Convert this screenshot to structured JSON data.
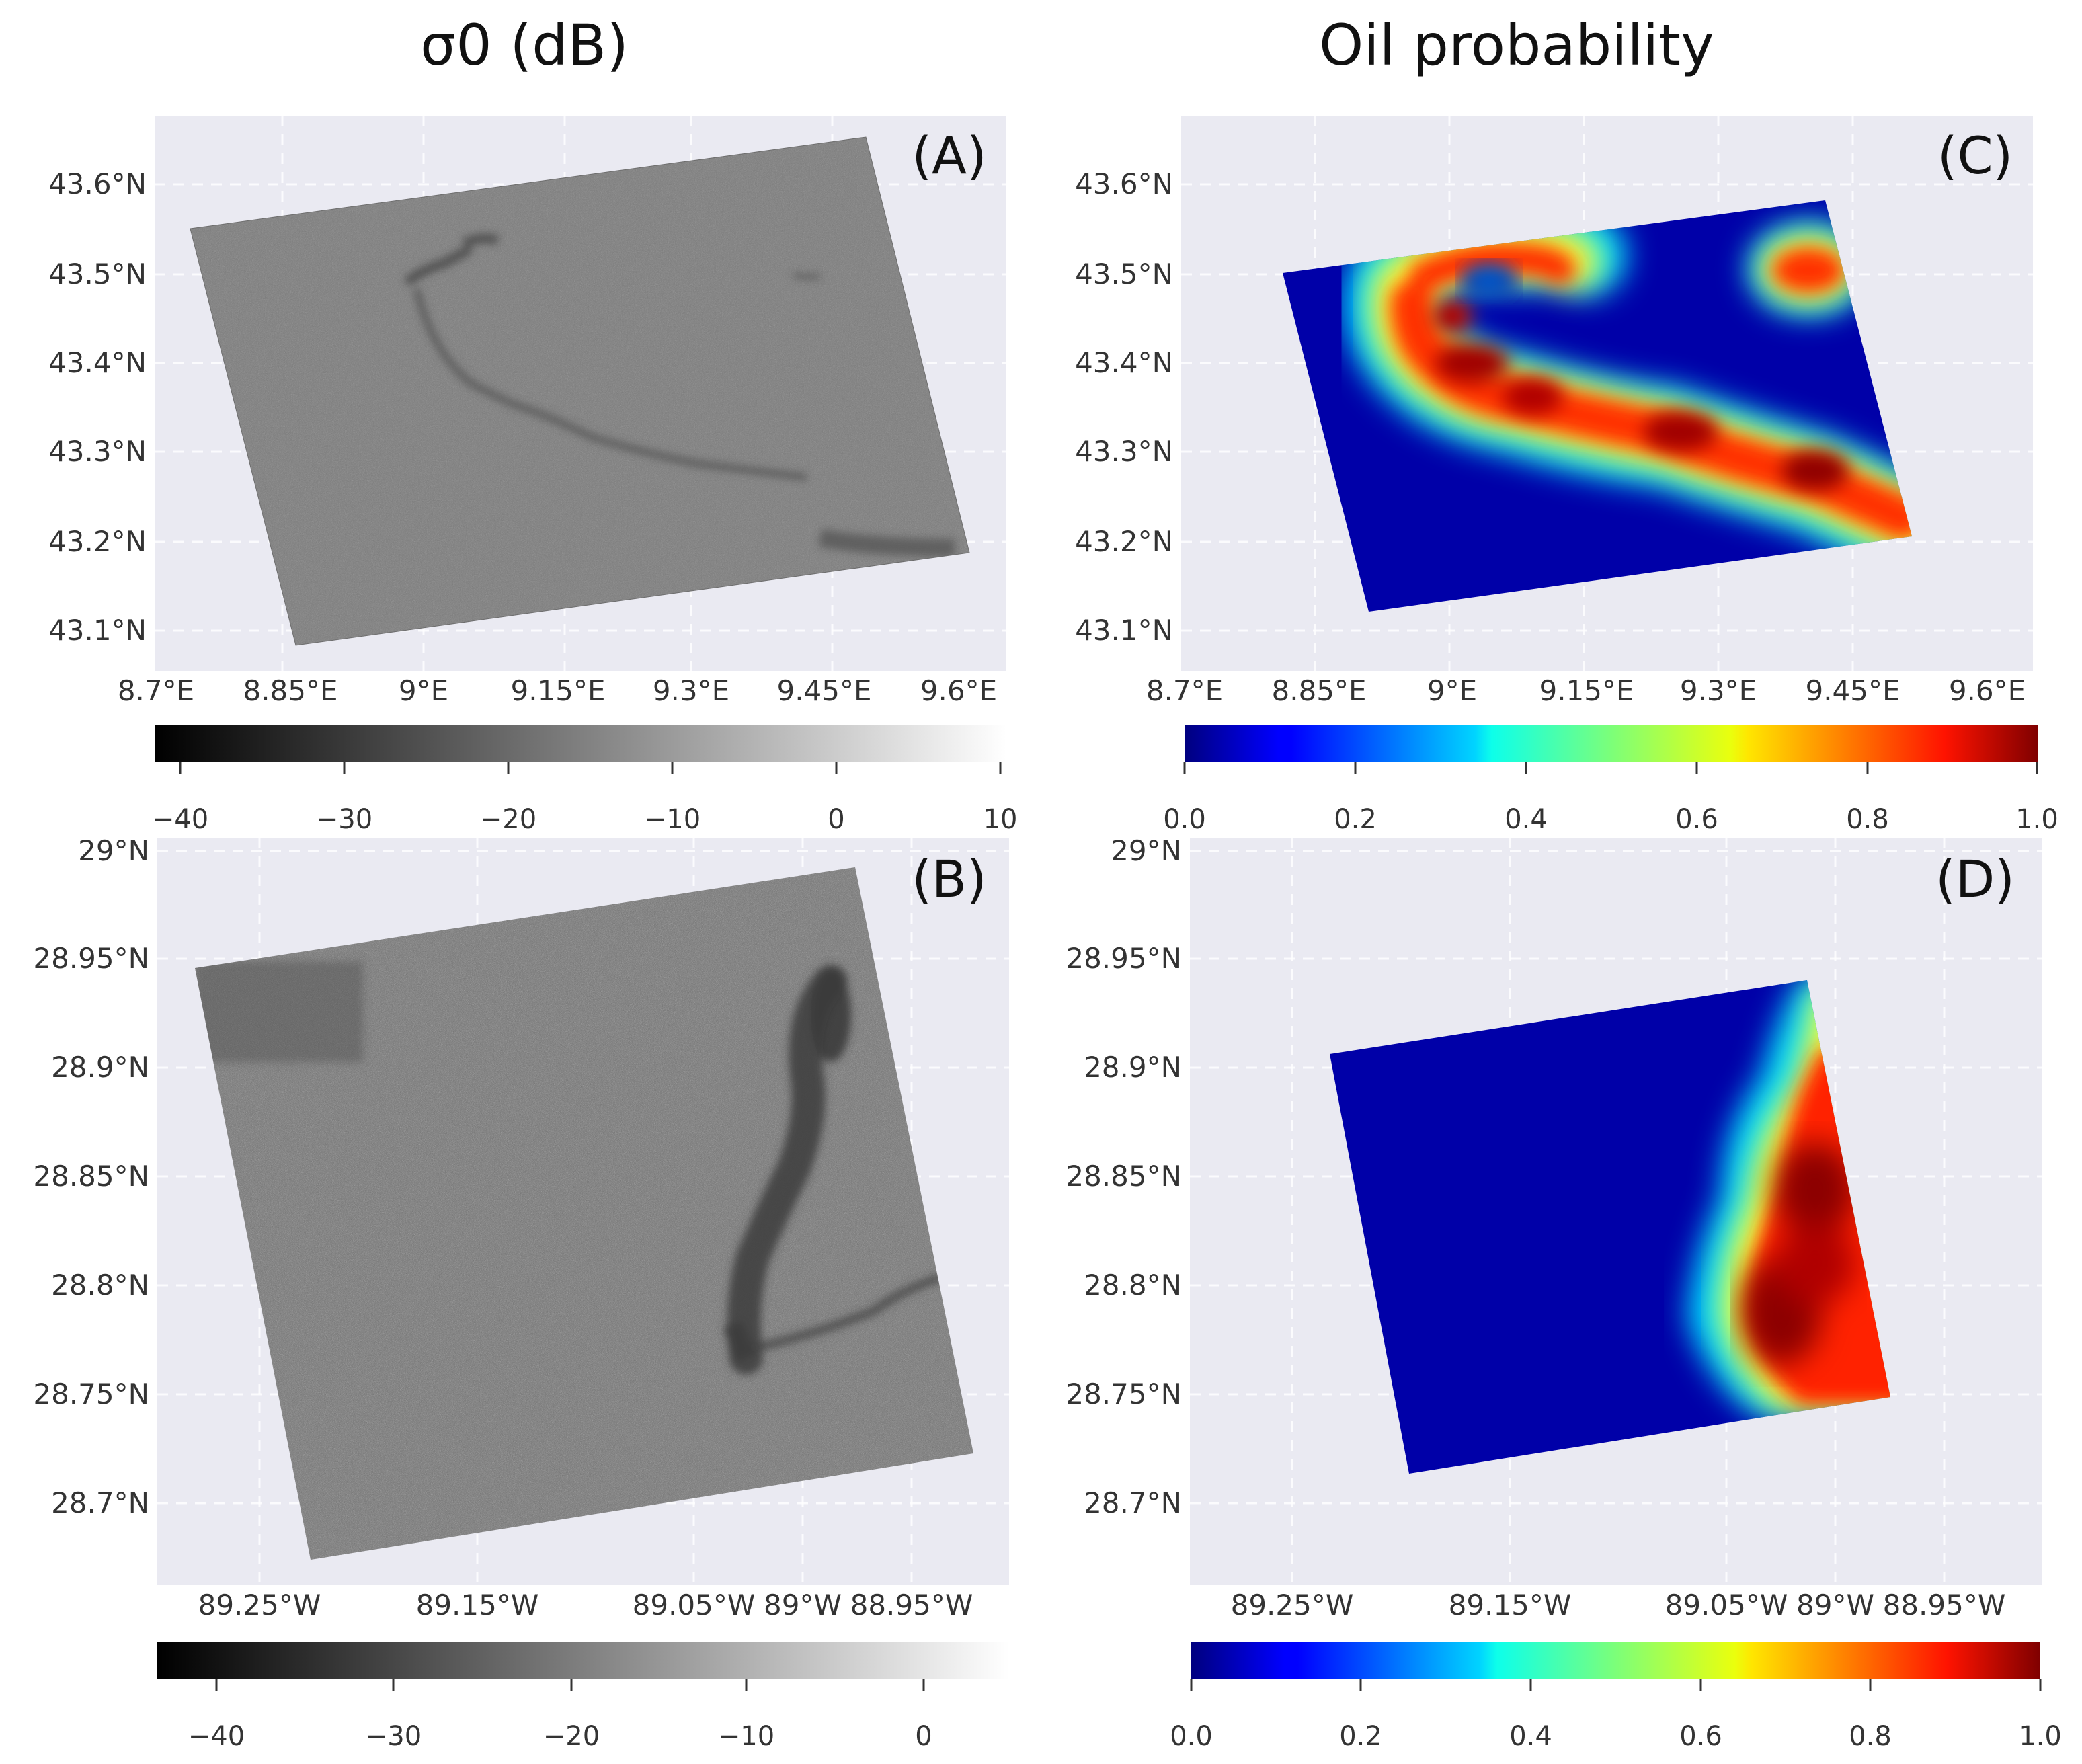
{
  "column_titles": {
    "left": "σ0 (dB)",
    "right": "Oil probability"
  },
  "chart_data": [
    {
      "id": "A",
      "type": "heatmap",
      "label": "(A)",
      "title": "σ0 (dB)",
      "colormap": "gray",
      "x_ticks": [
        "8.7°E",
        "8.85°E",
        "9°E",
        "9.15°E",
        "9.3°E",
        "9.45°E",
        "9.6°E"
      ],
      "y_ticks": [
        "43.1°N",
        "43.2°N",
        "43.3°N",
        "43.4°N",
        "43.5°N",
        "43.6°N"
      ],
      "colorbar": {
        "range": [
          -42,
          10
        ],
        "ticks": [
          "−40",
          "−30",
          "−20",
          "−10",
          "0",
          "10"
        ]
      },
      "description_values": {
        "background_db": -18,
        "slick_db": -27
      }
    },
    {
      "id": "B",
      "type": "heatmap",
      "label": "(B)",
      "title": "σ0 (dB)",
      "colormap": "gray",
      "x_ticks": [
        "89.25°W",
        "89.15°W",
        "89.05°W",
        "89°W",
        "88.95°W"
      ],
      "y_ticks": [
        "28.7°N",
        "28.75°N",
        "28.8°N",
        "28.85°N",
        "28.9°N",
        "28.95°N",
        "29°N"
      ],
      "colorbar": {
        "range": [
          -43,
          5
        ],
        "ticks": [
          "−40",
          "−30",
          "−20",
          "−10",
          "0"
        ]
      },
      "description_values": {
        "background_db": -22,
        "slick_db": -32
      }
    },
    {
      "id": "C",
      "type": "heatmap",
      "label": "(C)",
      "title": "Oil probability",
      "colormap": "jet",
      "x_ticks": [
        "8.7°E",
        "8.85°E",
        "9°E",
        "9.15°E",
        "9.3°E",
        "9.45°E",
        "9.6°E"
      ],
      "y_ticks": [
        "43.1°N",
        "43.2°N",
        "43.3°N",
        "43.4°N",
        "43.5°N",
        "43.6°N"
      ],
      "colorbar": {
        "range": [
          0,
          1
        ],
        "ticks": [
          "0.0",
          "0.2",
          "0.4",
          "0.6",
          "0.8",
          "1.0"
        ]
      }
    },
    {
      "id": "D",
      "type": "heatmap",
      "label": "(D)",
      "title": "Oil probability",
      "colormap": "jet",
      "x_ticks": [
        "89.25°W",
        "89.15°W",
        "89.05°W",
        "89°W",
        "88.95°W"
      ],
      "y_ticks": [
        "28.7°N",
        "28.75°N",
        "28.8°N",
        "28.85°N",
        "28.9°N",
        "28.95°N",
        "29°N"
      ],
      "colorbar": {
        "range": [
          0,
          1
        ],
        "ticks": [
          "0.0",
          "0.2",
          "0.4",
          "0.6",
          "0.8",
          "1.0"
        ]
      }
    }
  ],
  "colors": {
    "plot_bg": "#eaeaf2",
    "grid": "#ffffff"
  }
}
